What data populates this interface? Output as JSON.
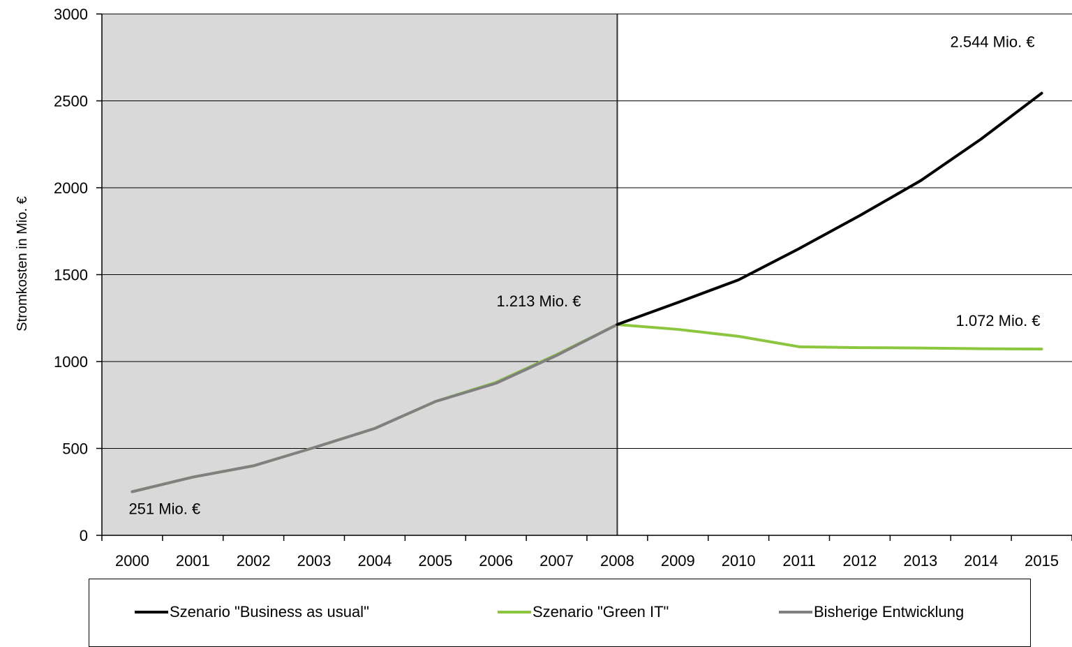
{
  "chart_data": {
    "type": "line",
    "title": "",
    "xlabel": "",
    "ylabel": "Stromkosten in Mio. €",
    "x": [
      2000,
      2001,
      2002,
      2003,
      2004,
      2005,
      2006,
      2007,
      2008,
      2009,
      2010,
      2011,
      2012,
      2013,
      2014,
      2015
    ],
    "ylim": [
      0,
      3000
    ],
    "yticks": [
      0,
      500,
      1000,
      1500,
      2000,
      2500,
      3000
    ],
    "xticks": [
      "2000",
      "2001",
      "2002",
      "2003",
      "2004",
      "2005",
      "2006",
      "2007",
      "2008",
      "2009",
      "2010",
      "2011",
      "2012",
      "2013",
      "2014",
      "2015"
    ],
    "grid": "horizontal",
    "shaded_region": {
      "from": 2000,
      "to": 2008,
      "color": "#d9d9d9"
    },
    "series": [
      {
        "name": "Szenario \"Business as usual\"",
        "color": "#000000",
        "x": [
          2008,
          2009,
          2010,
          2011,
          2012,
          2013,
          2014,
          2015
        ],
        "values": [
          1213,
          1340,
          1470,
          1650,
          1840,
          2040,
          2280,
          2544
        ]
      },
      {
        "name": "Szenario \"Green IT\"",
        "color": "#8cc63f",
        "x": [
          2000,
          2001,
          2002,
          2003,
          2004,
          2005,
          2006,
          2007,
          2008,
          2009,
          2010,
          2011,
          2012,
          2013,
          2014,
          2015
        ],
        "values": [
          251,
          335,
          400,
          505,
          615,
          770,
          880,
          1040,
          1213,
          1185,
          1145,
          1085,
          1080,
          1078,
          1074,
          1072
        ]
      },
      {
        "name": "Bisherige Entwicklung",
        "color": "#808080",
        "x": [
          2000,
          2001,
          2002,
          2003,
          2004,
          2005,
          2006,
          2007,
          2008
        ],
        "values": [
          251,
          335,
          400,
          505,
          615,
          770,
          875,
          1035,
          1213
        ]
      }
    ],
    "annotations": [
      {
        "text": "251 Mio. €",
        "x": 2000,
        "y": 251
      },
      {
        "text": "1.213 Mio. €",
        "x": 2008,
        "y": 1213
      },
      {
        "text": "2.544 Mio. €",
        "x": 2015,
        "y": 2544
      },
      {
        "text": "1.072 Mio. €",
        "x": 2015,
        "y": 1072
      }
    ],
    "legend_position": "bottom"
  }
}
